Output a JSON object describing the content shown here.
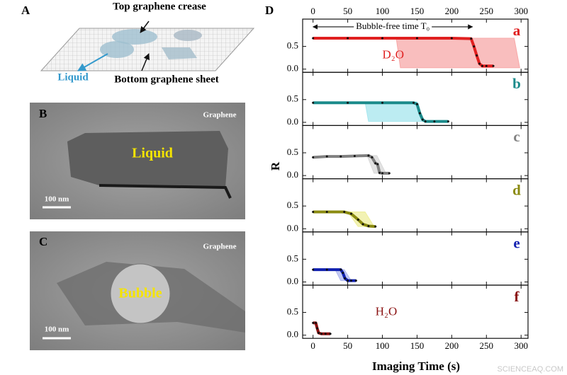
{
  "panels": [
    {
      "label": "A",
      "top_text": "Top graphene crease",
      "liquid_text": "Liquid",
      "bottom_text": "Bottom graphene sheet"
    },
    {
      "label": "B",
      "corner_text": "Graphene",
      "center_text": "Liquid",
      "scale_text": "100 nm"
    },
    {
      "label": "C",
      "corner_text": "Graphene",
      "center_text": "Bubble",
      "scale_text": "100 nm"
    }
  ],
  "figure": {
    "label": "D",
    "x_label": "Imaging Time  (s)",
    "y_label": "R",
    "watermark": "SCIENCEAQ.COM"
  },
  "chart_data": [
    {
      "type": "line",
      "panel": "a",
      "color": "#e02020",
      "x": [
        0,
        50,
        100,
        150,
        200,
        228,
        232,
        236,
        240,
        244,
        250,
        260
      ],
      "values": [
        0.68,
        0.68,
        0.68,
        0.68,
        0.68,
        0.67,
        0.5,
        0.3,
        0.12,
        0.07,
        0.07,
        0.07
      ],
      "area": {
        "color": "#f7a8a8",
        "x": [
          120,
          290,
          298,
          126
        ],
        "values": [
          0.68,
          0.68,
          0.03,
          0.03
        ]
      },
      "annotation": {
        "text": "D₂O",
        "x": 100,
        "y": 0.3
      },
      "arrow": {
        "text": "Bubble-free time T₀",
        "x": [
          0,
          230
        ],
        "y": 0.93
      },
      "xlim": [
        -15,
        310
      ],
      "xticks": [
        0,
        50,
        100,
        150,
        200,
        250,
        300
      ],
      "ylim": [
        -0.07,
        1.1
      ],
      "yticks": [
        {
          "value": 0,
          "label": "0.0"
        },
        {
          "value": 0.5,
          "label": "0.5"
        }
      ]
    },
    {
      "type": "line",
      "panel": "b",
      "color": "#1a8a8a",
      "x": [
        0,
        50,
        100,
        145,
        150,
        154,
        158,
        162,
        175,
        195
      ],
      "values": [
        0.43,
        0.43,
        0.43,
        0.43,
        0.4,
        0.2,
        0.06,
        0.02,
        0.02,
        0.02
      ],
      "area": {
        "color": "#a6e6ee",
        "x": [
          75,
          150,
          158,
          80
        ],
        "values": [
          0.45,
          0.45,
          0.02,
          0.02
        ]
      },
      "xlim": [
        -15,
        310
      ],
      "xticks": [
        0,
        50,
        100,
        150,
        200,
        250,
        300
      ],
      "ylim": [
        -0.07,
        1.1
      ],
      "yticks": [
        {
          "value": 0,
          "label": "0.0"
        },
        {
          "value": 0.5,
          "label": "0.5"
        }
      ]
    },
    {
      "type": "line",
      "panel": "c",
      "color": "#808080",
      "x": [
        0,
        20,
        40,
        60,
        80,
        85,
        90,
        93,
        96,
        100,
        110
      ],
      "values": [
        0.4,
        0.42,
        0.42,
        0.43,
        0.44,
        0.4,
        0.27,
        0.25,
        0.06,
        0.05,
        0.05
      ],
      "area": {
        "color": "#d8d8d8",
        "x": [
          78,
          92,
          105,
          88
        ],
        "values": [
          0.44,
          0.44,
          0.05,
          0.05
        ]
      },
      "xlim": [
        -15,
        310
      ],
      "xticks": [
        0,
        50,
        100,
        150,
        200,
        250,
        300
      ],
      "ylim": [
        -0.07,
        1.1
      ],
      "yticks": [
        {
          "value": 0,
          "label": "0.0"
        },
        {
          "value": 0.5,
          "label": "0.5"
        }
      ]
    },
    {
      "type": "line",
      "panel": "d",
      "color": "#8a8a10",
      "x": [
        0,
        20,
        45,
        55,
        65,
        72,
        80,
        90
      ],
      "values": [
        0.37,
        0.37,
        0.37,
        0.33,
        0.2,
        0.1,
        0.06,
        0.05
      ],
      "area": {
        "color": "#eeee99",
        "x": [
          50,
          75,
          88,
          65
        ],
        "values": [
          0.37,
          0.37,
          0.05,
          0.05
        ]
      },
      "xlim": [
        -15,
        310
      ],
      "xticks": [
        0,
        50,
        100,
        150,
        200,
        250,
        300
      ],
      "ylim": [
        -0.07,
        1.1
      ],
      "yticks": [
        {
          "value": 0,
          "label": "0.0"
        },
        {
          "value": 0.5,
          "label": "0.5"
        }
      ]
    },
    {
      "type": "line",
      "panel": "e",
      "color": "#1020b0",
      "x": [
        0,
        20,
        40,
        43,
        46,
        50,
        55,
        62
      ],
      "values": [
        0.27,
        0.27,
        0.27,
        0.2,
        0.08,
        0.03,
        0.03,
        0.03
      ],
      "area": {
        "color": "#b0b8ee",
        "x": [
          32,
          45,
          55,
          40
        ],
        "values": [
          0.27,
          0.27,
          0.03,
          0.03
        ]
      },
      "xlim": [
        -15,
        310
      ],
      "xticks": [
        0,
        50,
        100,
        150,
        200,
        250,
        300
      ],
      "ylim": [
        -0.07,
        1.1
      ],
      "yticks": [
        {
          "value": 0,
          "label": "0.0"
        },
        {
          "value": 0.5,
          "label": "0.5"
        }
      ]
    },
    {
      "type": "line",
      "panel": "f",
      "color": "#8a1010",
      "x": [
        0,
        4,
        6,
        8,
        12,
        18,
        25
      ],
      "values": [
        0.27,
        0.27,
        0.15,
        0.05,
        0.03,
        0.03,
        0.03
      ],
      "annotation": {
        "text": "H₂O",
        "x": 90,
        "y": 0.5
      },
      "xlim": [
        -15,
        310
      ],
      "xticks": [
        0,
        50,
        100,
        150,
        200,
        250,
        300
      ],
      "ylim": [
        -0.07,
        1.1
      ],
      "yticks": [
        {
          "value": 0,
          "label": "0.0"
        },
        {
          "value": 0.5,
          "label": "0.5"
        }
      ]
    }
  ]
}
